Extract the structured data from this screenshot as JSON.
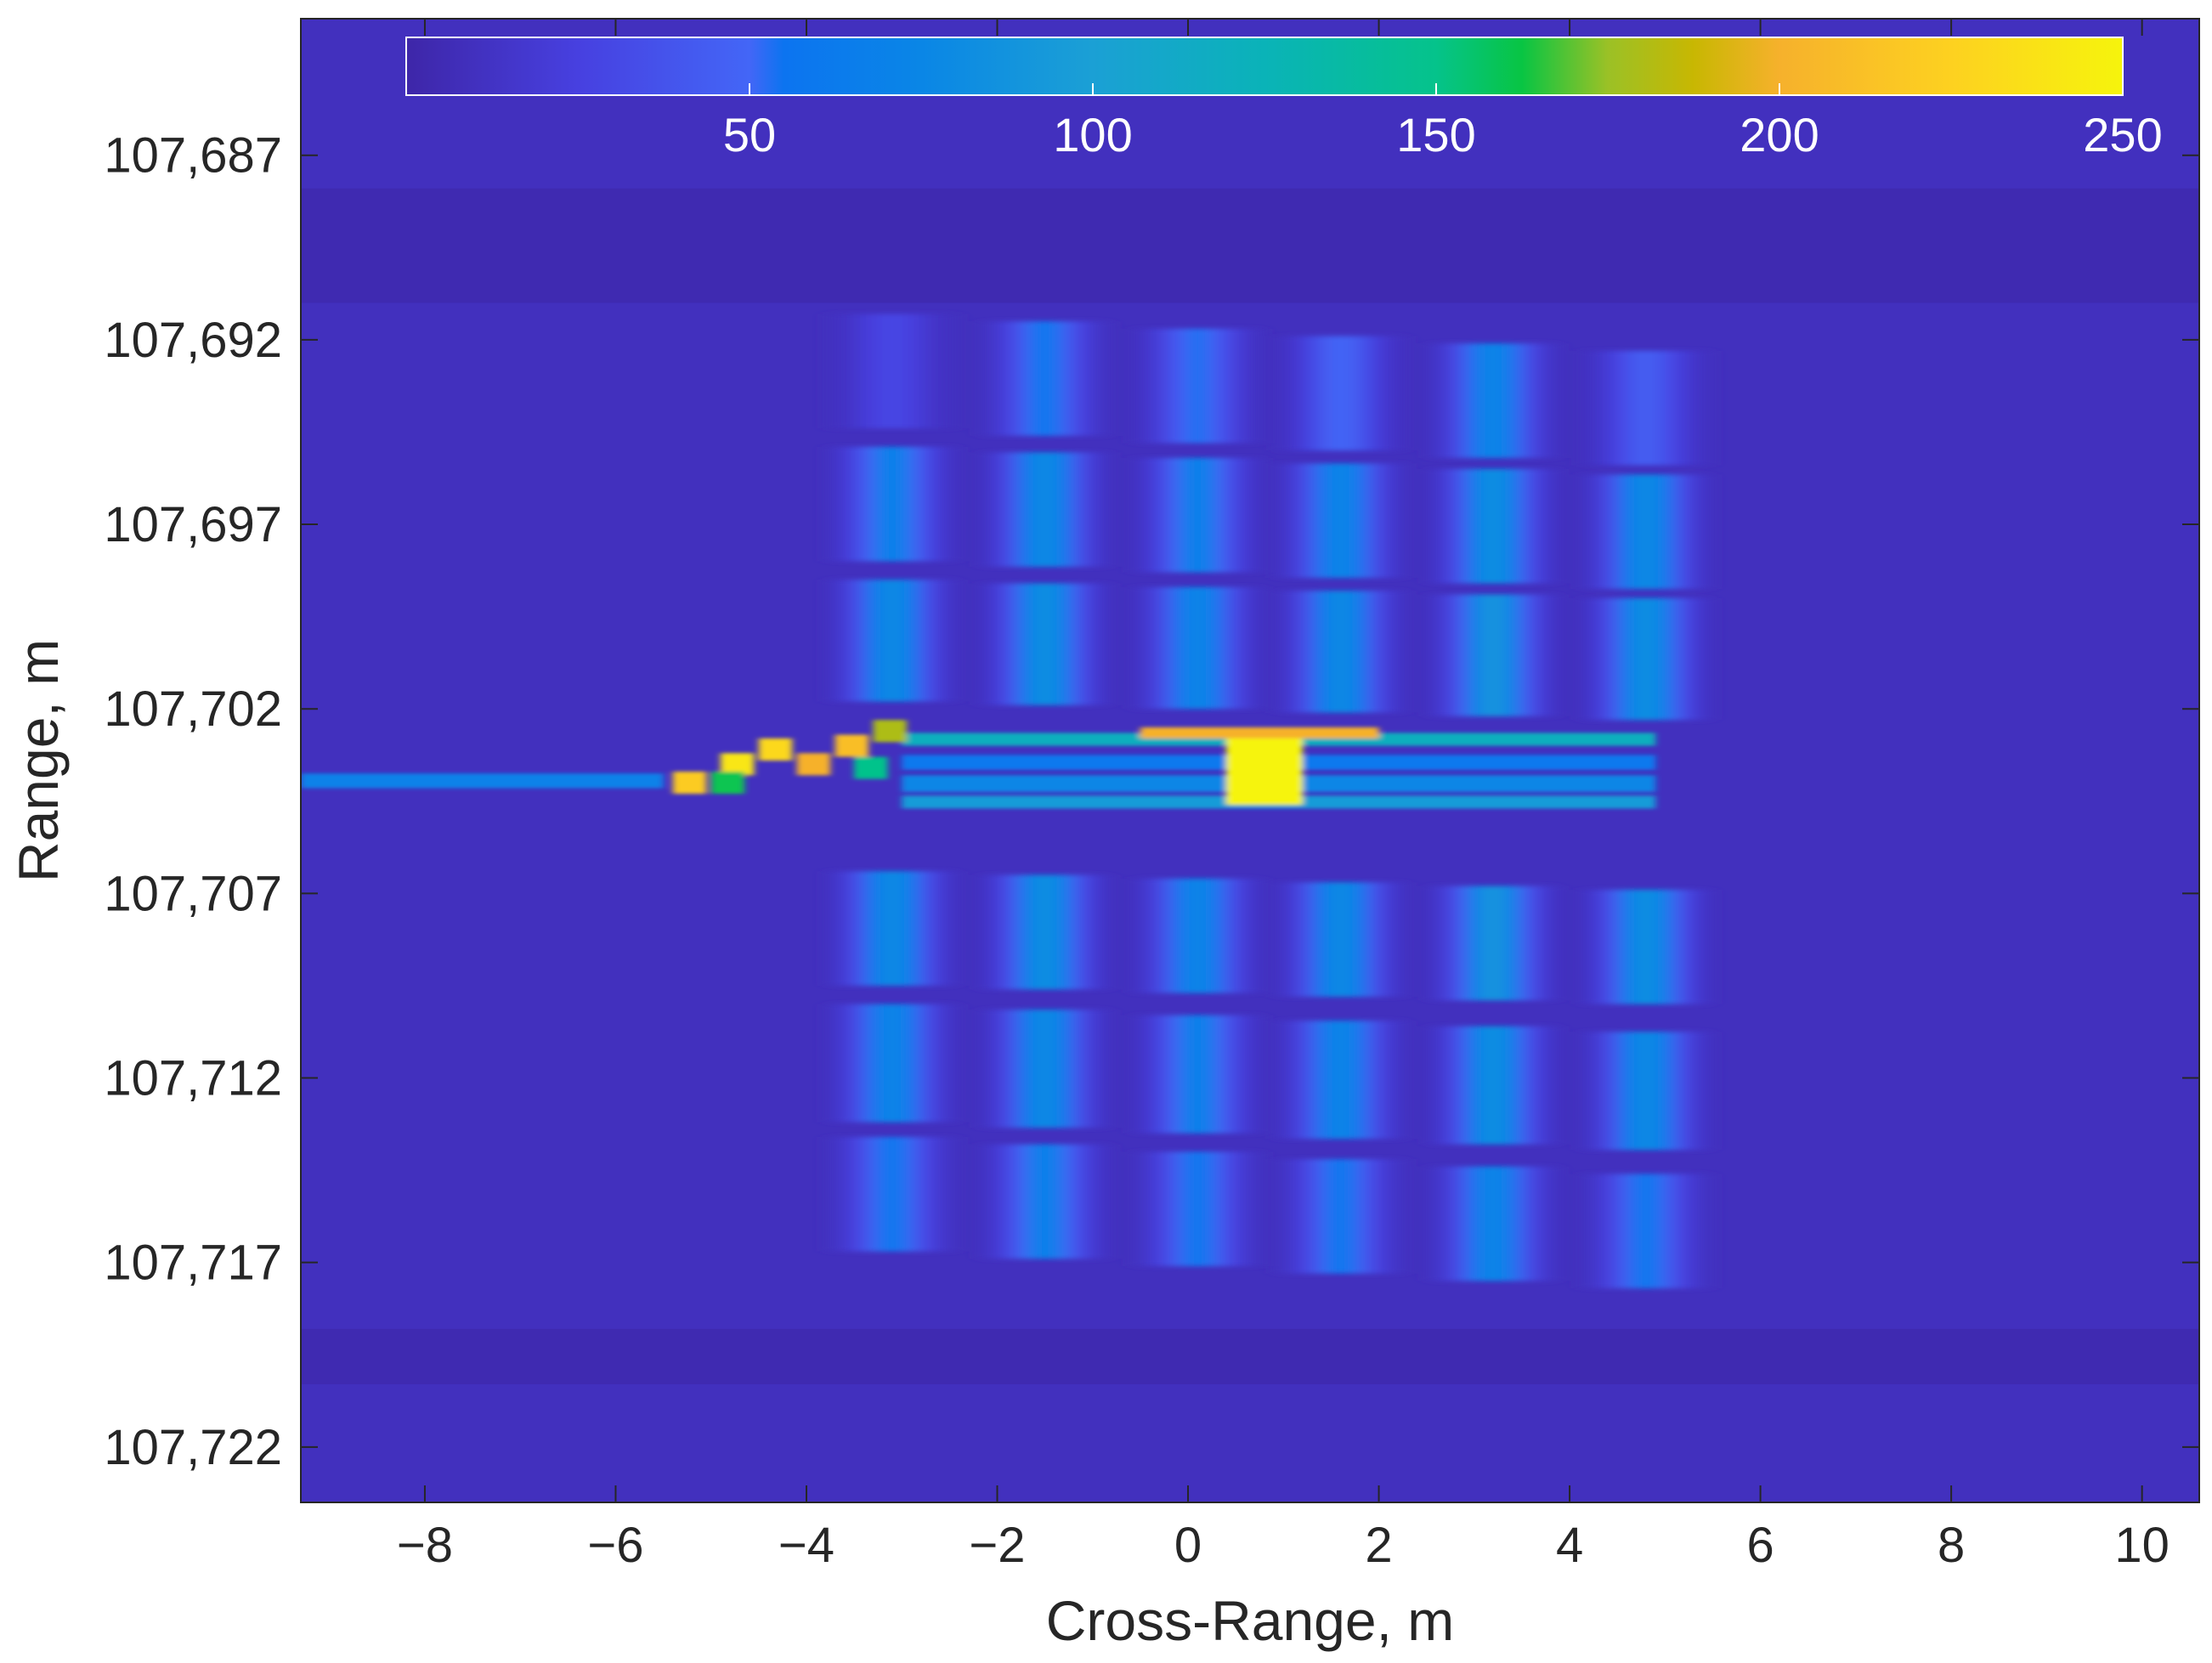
{
  "chart_data": {
    "type": "heatmap",
    "title": "",
    "xlabel": "Cross-Range, m",
    "ylabel": "Range, m",
    "xlim": [
      -9.3,
      10.6
    ],
    "ylim": [
      107683.3,
      107723.5
    ],
    "y_reversed": true,
    "xticks": [
      -8,
      -6,
      -4,
      -2,
      0,
      2,
      4,
      6,
      8,
      10
    ],
    "xtick_labels": [
      "−8",
      "−6",
      "−4",
      "−2",
      "0",
      "2",
      "4",
      "6",
      "8",
      "10"
    ],
    "yticks": [
      107687,
      107692,
      107697,
      107702,
      107707,
      107712,
      107717,
      107722
    ],
    "ytick_labels": [
      "107,687",
      "107,692",
      "107,697",
      "107,702",
      "107,707",
      "107,712",
      "107,717",
      "107,722"
    ],
    "colorbar": {
      "location": "north-inside",
      "range": [
        0,
        250
      ],
      "ticks": [
        50,
        100,
        150,
        200,
        250
      ],
      "tick_labels": [
        "50",
        "100",
        "150",
        "200",
        "250"
      ],
      "colormap": "parula"
    },
    "background_value": 10,
    "bands": [
      {
        "y0": 107687.9,
        "y1": 107691.0,
        "value": 4
      },
      {
        "y0": 107718.8,
        "y1": 107720.3,
        "value": 4
      }
    ],
    "scatterers": {
      "columns_x": [
        -3.1,
        -1.5,
        0.1,
        1.6,
        3.2,
        4.8
      ],
      "rows": [
        {
          "name": "upper-1",
          "y": [
            107691.3,
            107694.4
          ],
          "shift_per_col": 0.2,
          "peak": [
            30,
            60,
            55,
            50,
            75,
            45
          ]
        },
        {
          "name": "upper-2",
          "y": [
            107694.9,
            107698.0
          ],
          "shift_per_col": 0.15,
          "peak": [
            70,
            80,
            70,
            75,
            85,
            80
          ]
        },
        {
          "name": "upper-3",
          "y": [
            107698.5,
            107701.8
          ],
          "shift_per_col": 0.1,
          "peak": [
            80,
            85,
            75,
            80,
            90,
            85
          ]
        },
        {
          "name": "lower-1",
          "y": [
            107706.4,
            107709.5
          ],
          "shift_per_col": 0.1,
          "peak": [
            80,
            85,
            75,
            80,
            90,
            85
          ]
        },
        {
          "name": "lower-2",
          "y": [
            107710.0,
            107713.2
          ],
          "shift_per_col": 0.15,
          "peak": [
            75,
            80,
            70,
            75,
            85,
            80
          ]
        },
        {
          "name": "lower-3",
          "y": [
            107713.6,
            107716.7
          ],
          "shift_per_col": 0.2,
          "peak": [
            60,
            70,
            60,
            60,
            75,
            60
          ]
        }
      ]
    },
    "bright_streak": {
      "y_center": 107703.6,
      "x_range": [
        -9.3,
        4.9
      ],
      "core": {
        "x": [
          0.4,
          1.2
        ],
        "y": [
          107702.6,
          107704.6
        ],
        "value": 250
      },
      "tail": {
        "x": [
          -5.6,
          -3.0
        ],
        "y": [
          107702.8,
          107704.3
        ],
        "value": 220
      }
    }
  }
}
